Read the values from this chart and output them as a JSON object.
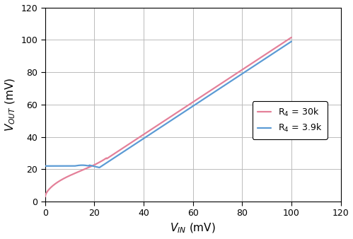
{
  "title": "",
  "xlabel": "V_IN (mV)",
  "ylabel": "V_OUT (mV)",
  "xlim": [
    0,
    120
  ],
  "ylim": [
    0,
    120
  ],
  "xticks": [
    0,
    20,
    40,
    60,
    80,
    100,
    120
  ],
  "yticks": [
    0,
    20,
    40,
    60,
    80,
    100,
    120
  ],
  "line1_color": "#5b9bd5",
  "line2_color": "#e48099",
  "line1_label": "R$_4$ = 3.9k",
  "line2_label": "R$_4$ = 30k",
  "line_width": 1.6,
  "figsize": [
    4.99,
    3.38
  ],
  "dpi": 100,
  "grid_color": "#bbbbbb",
  "spine_color": "#555555",
  "tick_fontsize": 9,
  "label_fontsize": 11
}
